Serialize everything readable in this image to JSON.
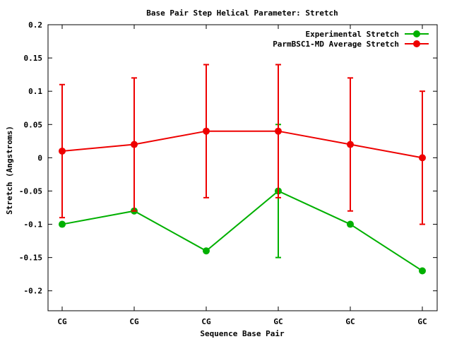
{
  "chart_data": {
    "type": "line",
    "title": "Base Pair Step Helical Parameter: Stretch",
    "xlabel": "Sequence Base Pair",
    "ylabel": "Stretch (Angstroms)",
    "categories": [
      "CG",
      "CG",
      "CG",
      "GC",
      "GC",
      "GC"
    ],
    "ylim": [
      -0.23,
      0.2
    ],
    "yticks": [
      0.2,
      0.15,
      0.1,
      0.05,
      0,
      -0.05,
      -0.1,
      -0.15,
      -0.2
    ],
    "ytick_labels": [
      "0.2",
      "0.15",
      "0.1",
      "0.05",
      "0",
      "-0.05",
      "-0.1",
      "-0.15",
      "-0.2"
    ],
    "grid": false,
    "legend_position": "top-right",
    "series": [
      {
        "name": "Experimental Stretch",
        "color": "#00b000",
        "values": [
          -0.1,
          -0.08,
          -0.14,
          -0.05,
          -0.1,
          -0.17
        ],
        "error": [
          0,
          0,
          0,
          0.1,
          0,
          0
        ]
      },
      {
        "name": "ParmBSC1-MD Average Stretch",
        "color": "#ee0000",
        "values": [
          0.01,
          0.02,
          0.04,
          0.04,
          0.02,
          0.0
        ],
        "error": [
          0.1,
          0.1,
          0.1,
          0.1,
          0.1,
          0.1
        ]
      }
    ]
  }
}
